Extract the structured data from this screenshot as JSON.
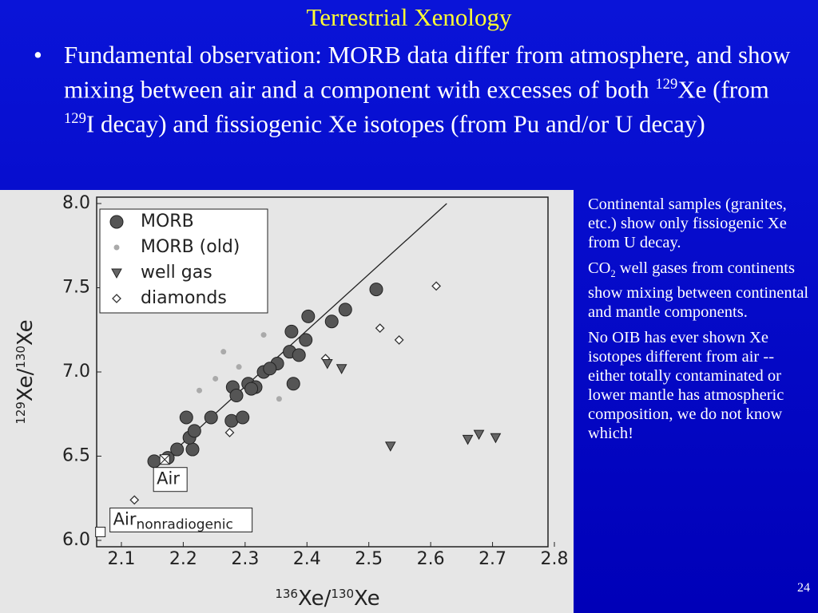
{
  "slide": {
    "title": "Terrestrial Xenology",
    "bullet": [
      "Fundamental observation: MORB data differ from atmosphere, and show mixing between air and a component with excesses of both ",
      "129",
      "Xe (from ",
      "129",
      "I decay) and fissiogenic Xe isotopes (from Pu and/or U decay)"
    ],
    "notes": [
      [
        "Continental samples (granites, etc.) show only fissiogenic Xe from U decay."
      ],
      [
        "CO",
        "2",
        " well gases from continents show mixing between continental and mantle components."
      ],
      [
        "No OIB has ever shown Xe isotopes different from air -- either totally contaminated or lower mantle has atmospheric composition, we do not know which!"
      ]
    ],
    "page_number": "24"
  },
  "chart_data": {
    "type": "scatter",
    "x_label": [
      "136",
      "Xe/",
      "130",
      "Xe"
    ],
    "y_label": [
      "129",
      "Xe/",
      "130",
      "Xe"
    ],
    "xlim": [
      2.06,
      2.8
    ],
    "ylim": [
      6.0,
      8.0
    ],
    "xticks": [
      2.1,
      2.2,
      2.3,
      2.4,
      2.5,
      2.6,
      2.7,
      2.8
    ],
    "yticks": [
      {
        "value": 6.0,
        "label": "6.0"
      },
      6.5,
      {
        "value": 7.0,
        "label": "7.0"
      },
      7.5,
      {
        "value": 8.0,
        "label": "8.0"
      }
    ],
    "series": [
      {
        "name": "MORB",
        "marker": "circle",
        "color": "#555555",
        "x": [
          2.153,
          2.175,
          2.19,
          2.215,
          2.21,
          2.218,
          2.205,
          2.245,
          2.278,
          2.296,
          2.28,
          2.286,
          2.305,
          2.317,
          2.33,
          2.352,
          2.378,
          2.372,
          2.375,
          2.398,
          2.402,
          2.387,
          2.44,
          2.462,
          2.512,
          2.31,
          2.34
        ],
        "y": [
          6.47,
          6.49,
          6.54,
          6.54,
          6.61,
          6.65,
          6.73,
          6.73,
          6.71,
          6.73,
          6.91,
          6.86,
          6.93,
          6.91,
          7.0,
          7.05,
          6.93,
          7.12,
          7.24,
          7.19,
          7.33,
          7.1,
          7.3,
          7.37,
          7.49,
          6.9,
          7.02
        ]
      },
      {
        "name": "MORB (old)",
        "marker": "dot",
        "color": "#aaaaaa",
        "x": [
          2.226,
          2.252,
          2.33,
          2.265,
          2.355,
          2.29
        ],
        "y": [
          6.89,
          6.96,
          7.22,
          7.12,
          6.84,
          7.03
        ]
      },
      {
        "name": "well gas",
        "marker": "triangle",
        "color": "#666666",
        "x": [
          2.535,
          2.66,
          2.678,
          2.705,
          2.456,
          2.433
        ],
        "y": [
          6.56,
          6.6,
          6.63,
          6.61,
          7.02,
          7.05
        ]
      },
      {
        "name": "diamonds",
        "marker": "diamond",
        "color": "#333333",
        "x": [
          2.121,
          2.275,
          2.518,
          2.549,
          2.609,
          2.43
        ],
        "y": [
          6.24,
          6.64,
          7.26,
          7.19,
          7.51,
          7.08
        ]
      }
    ],
    "mixing_line": {
      "x": [
        2.17,
        2.626
      ],
      "y": [
        6.48,
        8.0
      ]
    },
    "reference_points": [
      {
        "label": [
          "Air"
        ],
        "x": 2.17,
        "y": 6.48
      },
      {
        "label": [
          "Air",
          "nonradiogenic"
        ],
        "x": 2.066,
        "y": 6.05
      }
    ]
  }
}
